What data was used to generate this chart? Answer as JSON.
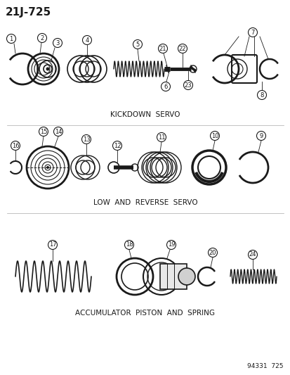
{
  "title": "21J-725",
  "section1_label": "KICKDOWN  SERVO",
  "section2_label": "LOW  AND  REVERSE  SERVO",
  "section3_label": "ACCUMULATOR  PISTON  AND  SPRING",
  "footer": "94331  725",
  "bg_color": "#ffffff",
  "line_color": "#1a1a1a"
}
